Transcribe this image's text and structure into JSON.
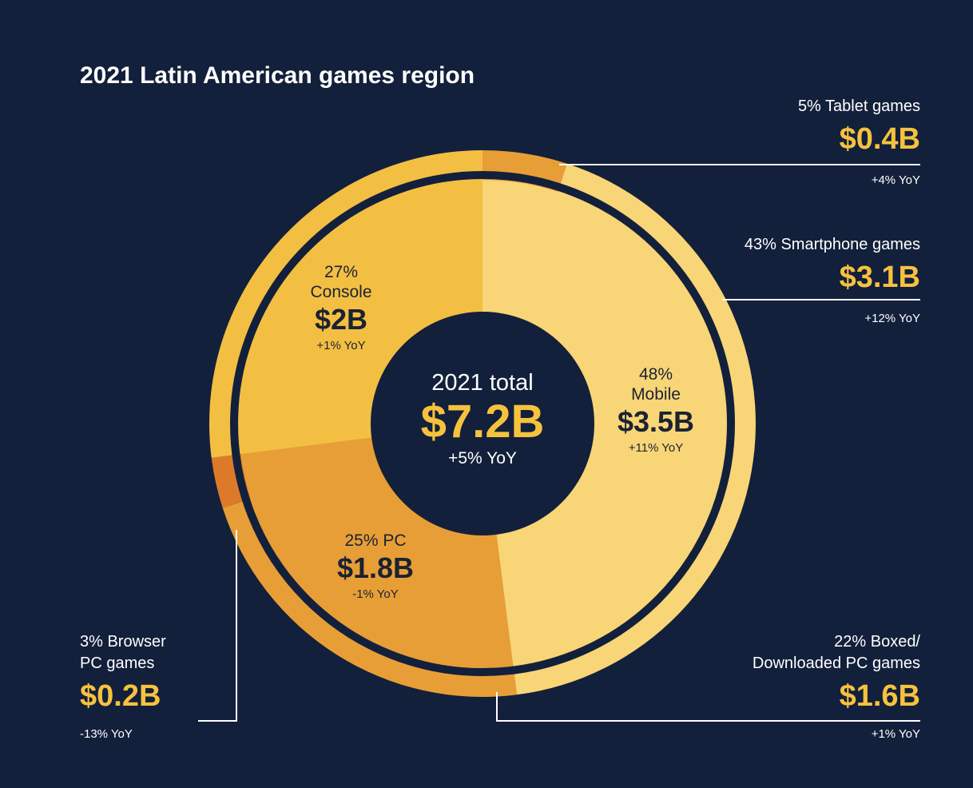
{
  "title": "2021 Latin American games region",
  "center": {
    "label": "2021 total",
    "value": "$7.2B",
    "yoy": "+5% YoY"
  },
  "chart_data": {
    "type": "pie",
    "title": "2021 Latin American games region",
    "total": {
      "label": "2021 total",
      "value": 7.2,
      "unit": "$B",
      "display": "$7.2B",
      "yoy": "+5% YoY"
    },
    "inner": [
      {
        "name": "Mobile",
        "percent": 48,
        "pct_label": "48%",
        "name_label": "Mobile",
        "value": 3.5,
        "display": "$3.5B",
        "yoy": "+11% YoY",
        "color": "#f8d576"
      },
      {
        "name": "PC",
        "percent": 25,
        "pct_label": "25% PC",
        "name_label": "",
        "value": 1.8,
        "display": "$1.8B",
        "yoy": "-1% YoY",
        "color": "#e89e36"
      },
      {
        "name": "Console",
        "percent": 27,
        "pct_label": "27%",
        "name_label": "Console",
        "value": 2.0,
        "display": "$2B",
        "yoy": "+1% YoY",
        "color": "#f3bf43"
      }
    ],
    "outer": [
      {
        "name": "Tablet games",
        "percent": 5,
        "pct_label": "5% Tablet games",
        "value": 0.4,
        "display": "$0.4B",
        "yoy": "+4% YoY",
        "color": "#e89e36"
      },
      {
        "name": "Smartphone games",
        "percent": 43,
        "pct_label": "43% Smartphone games",
        "value": 3.1,
        "display": "$3.1B",
        "yoy": "+12% YoY",
        "color": "#f8d576"
      },
      {
        "name": "Boxed/Downloaded PC games",
        "percent": 22,
        "pct_label_1": "22% Boxed/",
        "pct_label_2": "Downloaded PC games",
        "value": 1.6,
        "display": "$1.6B",
        "yoy": "+1% YoY",
        "color": "#e89e36"
      },
      {
        "name": "Browser PC games",
        "percent": 3,
        "pct_label_1": "3% Browser",
        "pct_label_2": "PC games",
        "value": 0.2,
        "display": "$0.2B",
        "yoy": "-13% YoY",
        "color": "#dd7a2a"
      },
      {
        "name": "Console",
        "percent": 27,
        "value": 2.0,
        "color": "#f3bf43"
      }
    ]
  },
  "colors": {
    "background": "#13203b",
    "accent": "#f6c23e",
    "ring": "#13203b",
    "leader": "#ffffff"
  }
}
